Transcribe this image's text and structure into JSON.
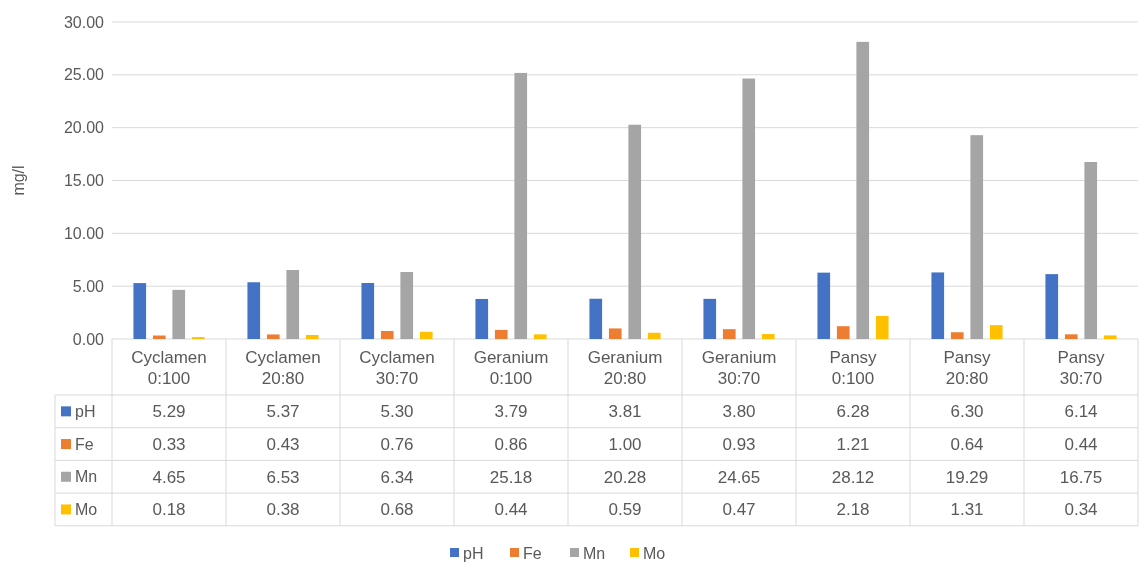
{
  "chart_data": {
    "type": "bar",
    "ylabel": "mg/l",
    "categories": [
      "Cyclamen 0:100",
      "Cyclamen 20:80",
      "Cyclamen 30:70",
      "Geranium 0:100",
      "Geranium 20:80",
      "Geranium 30:70",
      "Pansy 0:100",
      "Pansy 20:80",
      "Pansy 30:70"
    ],
    "series": [
      {
        "name": "pH",
        "color": "#4472c4",
        "values": [
          5.29,
          5.37,
          5.3,
          3.79,
          3.81,
          3.8,
          6.28,
          6.3,
          6.14
        ],
        "value_labels": [
          "5.29",
          "5.37",
          "5.30",
          "3.79",
          "3.81",
          "3.80",
          "6.28",
          "6.30",
          "6.14"
        ]
      },
      {
        "name": "Fe",
        "color": "#ed7d31",
        "values": [
          0.33,
          0.43,
          0.76,
          0.86,
          1.0,
          0.93,
          1.21,
          0.64,
          0.44
        ],
        "value_labels": [
          "0.33",
          "0.43",
          "0.76",
          "0.86",
          "1.00",
          "0.93",
          "1.21",
          "0.64",
          "0.44"
        ]
      },
      {
        "name": "Mn",
        "color": "#a5a5a5",
        "values": [
          4.65,
          6.53,
          6.34,
          25.18,
          20.28,
          24.65,
          28.12,
          19.29,
          16.75
        ],
        "value_labels": [
          "4.65",
          "6.53",
          "6.34",
          "25.18",
          "20.28",
          "24.65",
          "28.12",
          "19.29",
          "16.75"
        ]
      },
      {
        "name": "Mo",
        "color": "#ffc000",
        "values": [
          0.18,
          0.38,
          0.68,
          0.44,
          0.59,
          0.47,
          2.18,
          1.31,
          0.34
        ],
        "value_labels": [
          "0.18",
          "0.38",
          "0.68",
          "0.44",
          "0.59",
          "0.47",
          "2.18",
          "1.31",
          "0.34"
        ]
      }
    ],
    "ylim": [
      0,
      30
    ],
    "yticks": [
      {
        "value": 0,
        "label": "0.00"
      },
      {
        "value": 5,
        "label": "5.00"
      },
      {
        "value": 10,
        "label": "10.00"
      },
      {
        "value": 15,
        "label": "15.00"
      },
      {
        "value": 20,
        "label": "20.00"
      },
      {
        "value": 25,
        "label": "25.00"
      },
      {
        "value": 30,
        "label": "30.00"
      }
    ],
    "grid": "y",
    "legend": "bottom"
  }
}
